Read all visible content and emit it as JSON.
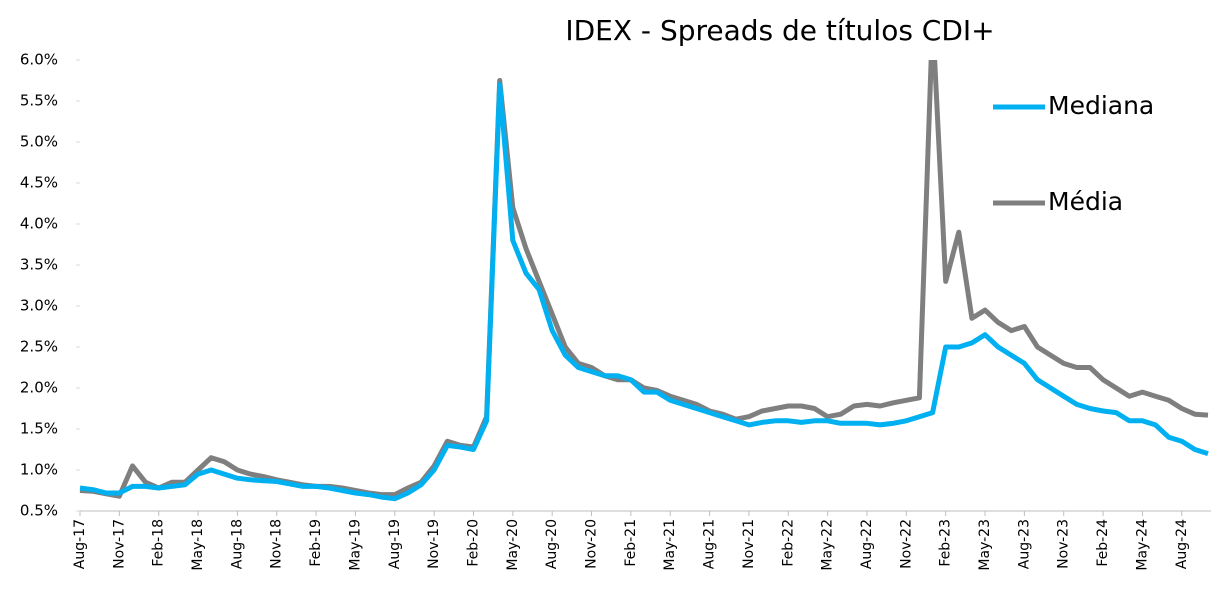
{
  "chart_data": {
    "type": "line",
    "title": "IDEX - Spreads de títulos CDI+",
    "categories": [
      "Aug-17",
      null,
      null,
      "Nov-17",
      null,
      null,
      "Feb-18",
      null,
      null,
      "May-18",
      null,
      null,
      "Aug-18",
      null,
      null,
      "Nov-18",
      null,
      null,
      "Feb-19",
      null,
      null,
      "May-19",
      null,
      null,
      "Aug-19",
      null,
      null,
      "Nov-19",
      null,
      null,
      "Feb-20",
      null,
      null,
      "May-20",
      null,
      null,
      "Aug-20",
      null,
      null,
      "Nov-20",
      null,
      null,
      "Feb-21",
      null,
      null,
      "May-21",
      null,
      null,
      "Aug-21",
      null,
      null,
      "Nov-21",
      null,
      null,
      "Feb-22",
      null,
      null,
      "May-22",
      null,
      null,
      "Aug-22",
      null,
      null,
      "Nov-22",
      null,
      null,
      "Feb-23",
      null,
      null,
      "May-23",
      null,
      null,
      "Aug-23",
      null,
      null,
      "Nov-23",
      null,
      null,
      "Feb-24",
      null,
      null,
      "May-24",
      null,
      null,
      "Aug-24",
      null,
      null
    ],
    "series": [
      {
        "name": "Mediana",
        "color": "#00b0f0",
        "values": [
          0.78,
          0.76,
          0.72,
          0.72,
          0.8,
          0.8,
          0.78,
          0.8,
          0.82,
          0.95,
          1.0,
          0.95,
          0.9,
          0.88,
          0.87,
          0.86,
          0.83,
          0.8,
          0.8,
          0.78,
          0.75,
          0.72,
          0.7,
          0.67,
          0.65,
          0.72,
          0.82,
          1.0,
          1.3,
          1.28,
          1.25,
          1.6,
          5.7,
          3.8,
          3.4,
          3.2,
          2.7,
          2.4,
          2.25,
          2.2,
          2.15,
          2.15,
          2.1,
          1.95,
          1.95,
          1.85,
          1.8,
          1.75,
          1.7,
          1.65,
          1.6,
          1.55,
          1.58,
          1.6,
          1.6,
          1.58,
          1.6,
          1.6,
          1.57,
          1.57,
          1.57,
          1.55,
          1.57,
          1.6,
          1.65,
          1.7,
          2.5,
          2.5,
          2.55,
          2.65,
          2.5,
          2.4,
          2.3,
          2.1,
          2.0,
          1.9,
          1.8,
          1.75,
          1.72,
          1.7,
          1.6,
          1.6,
          1.55,
          1.4,
          1.35,
          1.25,
          1.2
        ]
      },
      {
        "name": "Média",
        "color": "#7f7f7f",
        "values": [
          0.75,
          0.74,
          0.71,
          0.68,
          1.05,
          0.85,
          0.78,
          0.85,
          0.85,
          1.0,
          1.15,
          1.1,
          1.0,
          0.95,
          0.92,
          0.88,
          0.85,
          0.82,
          0.8,
          0.8,
          0.78,
          0.75,
          0.72,
          0.7,
          0.7,
          0.78,
          0.85,
          1.05,
          1.35,
          1.3,
          1.28,
          1.65,
          5.75,
          4.2,
          3.7,
          3.3,
          2.9,
          2.5,
          2.3,
          2.25,
          2.15,
          2.1,
          2.1,
          2.0,
          1.97,
          1.9,
          1.85,
          1.8,
          1.72,
          1.68,
          1.62,
          1.65,
          1.72,
          1.75,
          1.78,
          1.78,
          1.75,
          1.65,
          1.68,
          1.78,
          1.8,
          1.78,
          1.82,
          1.85,
          1.88,
          6.5,
          3.3,
          3.9,
          2.85,
          2.95,
          2.8,
          2.7,
          2.75,
          2.5,
          2.4,
          2.3,
          2.25,
          2.25,
          2.1,
          2.0,
          1.9,
          1.95,
          1.9,
          1.85,
          1.75,
          1.68,
          1.67
        ]
      }
    ],
    "ylim": [
      0.5,
      6.0
    ],
    "yticks": [
      {
        "value": 0.5,
        "label": "0.5%"
      },
      {
        "value": 1.0,
        "label": "1.0%"
      },
      {
        "value": 1.5,
        "label": "1.5%"
      },
      {
        "value": 2.0,
        "label": "2.0%"
      },
      {
        "value": 2.5,
        "label": "2.5%"
      },
      {
        "value": 3.0,
        "label": "3.0%"
      },
      {
        "value": 3.5,
        "label": "3.5%"
      },
      {
        "value": 4.0,
        "label": "4.0%"
      },
      {
        "value": 4.5,
        "label": "4.5%"
      },
      {
        "value": 5.0,
        "label": "5.0%"
      },
      {
        "value": 5.5,
        "label": "5.5%"
      },
      {
        "value": 6.0,
        "label": "6.0%"
      }
    ],
    "grid": false,
    "legend": "right"
  }
}
